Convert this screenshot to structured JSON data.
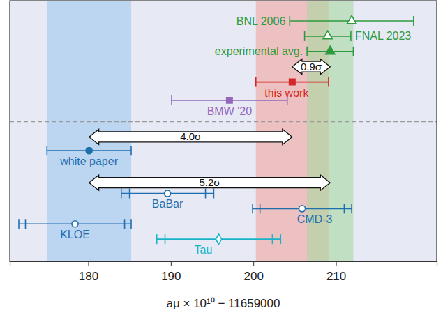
{
  "chart_data": {
    "type": "errorbar",
    "xlabel": "aμ × 10¹⁰ − 11659000",
    "xlim": [
      170.5,
      222.2
    ],
    "xticks": [
      180,
      190,
      200,
      210
    ],
    "series": [
      {
        "name": "BNL 2006",
        "color": "#2e9a3e",
        "marker": "triangle-open",
        "values": [
          211.9
        ],
        "errors": [
          7.5
        ]
      },
      {
        "name": "FNAL 2023",
        "color": "#2e9a3e",
        "marker": "triangle-open",
        "values": [
          209.0
        ],
        "errors": [
          2.8
        ]
      },
      {
        "name": "experimental avg.",
        "color": "#2e9a3e",
        "marker": "triangle",
        "values": [
          209.3
        ],
        "errors": [
          2.8
        ]
      },
      {
        "name": "this work",
        "color": "#d62728",
        "marker": "square",
        "values": [
          204.7
        ],
        "errors": [
          4.4
        ]
      },
      {
        "name": "BMW '20",
        "color": "#9467bd",
        "marker": "square",
        "values": [
          197.1
        ],
        "errors": [
          7.0
        ]
      },
      {
        "name": "white paper",
        "color": "#1f6fb0",
        "marker": "circle",
        "values": [
          180.1
        ],
        "errors": [
          5.1
        ]
      },
      {
        "name": "BaBar",
        "color": "#1f6fb0",
        "marker": "circle-open",
        "values": [
          189.6
        ],
        "errors": [
          5.6
        ],
        "errors_inner": [
          4.6
        ]
      },
      {
        "name": "CMD-3",
        "color": "#1f6fb0",
        "marker": "circle-open",
        "values": [
          205.9
        ],
        "errors": [
          6.0
        ],
        "errors_inner": [
          5.1
        ]
      },
      {
        "name": "KLOE",
        "color": "#1f6fb0",
        "marker": "circle-open",
        "values": [
          178.4
        ],
        "errors": [
          6.8
        ],
        "errors_inner": [
          6.0
        ]
      },
      {
        "name": "Tau",
        "color": "#17b3c8",
        "marker": "diamond-open",
        "values": [
          195.8
        ],
        "errors": [
          7.5
        ],
        "errors_inner": [
          6.5
        ]
      }
    ],
    "bands": [
      {
        "lo": 175.0,
        "hi": 185.2,
        "color": "#b9d4ef"
      },
      {
        "lo": 200.3,
        "hi": 209.1,
        "color": "#f2a79f"
      },
      {
        "lo": 206.5,
        "hi": 212.1,
        "color": "#a9d9a0"
      }
    ],
    "annotations": [
      {
        "text": "0.9σ",
        "from": 204.7,
        "to": 209.3
      },
      {
        "text": "4.0σ",
        "from": 180.1,
        "to": 204.7
      },
      {
        "text": "5.2σ",
        "from": 180.1,
        "to": 209.3
      }
    ]
  }
}
